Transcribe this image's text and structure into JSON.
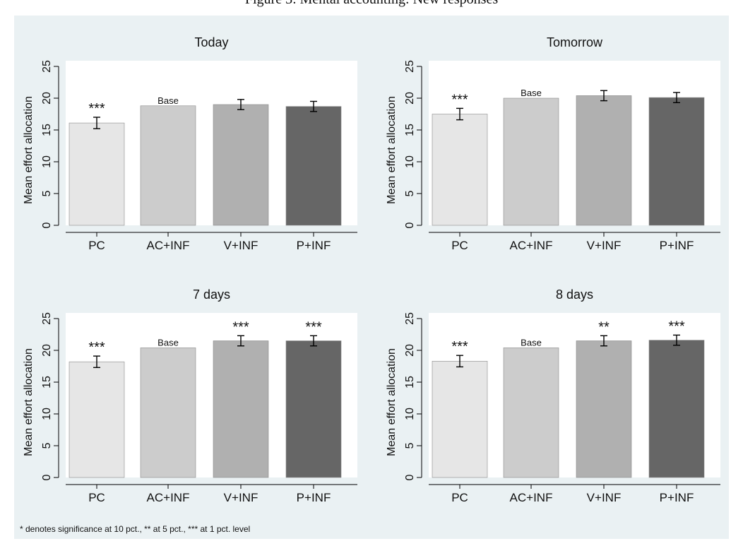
{
  "figure_title": "Figure 3: Mental accounting: New responses",
  "note": "* denotes significance at 10 pct., ** at 5 pct., *** at 1 pct. level",
  "colors": {
    "background": "#eaf1f3",
    "plot_area": "#ffffff",
    "bars": [
      "#e6e6e6",
      "#cccccc",
      "#b0b0b0",
      "#666666"
    ]
  },
  "chart_data": [
    {
      "type": "bar",
      "title": "Today",
      "ylabel": "Mean effort allocation",
      "xlabel": "",
      "ylim": [
        0,
        25
      ],
      "yticks": [
        0,
        5,
        10,
        15,
        20,
        25
      ],
      "grid": false,
      "categories": [
        "PC",
        "AC+INF",
        "V+INF",
        "P+INF"
      ],
      "values": [
        16.1,
        18.8,
        19.0,
        18.7
      ],
      "ci_low": [
        15.2,
        null,
        18.2,
        17.9
      ],
      "ci_high": [
        17.0,
        null,
        19.8,
        19.5
      ],
      "labels": [
        "***",
        "Base",
        "",
        ""
      ]
    },
    {
      "type": "bar",
      "title": "Tomorrow",
      "ylabel": "Mean effort allocation",
      "xlabel": "",
      "ylim": [
        0,
        25
      ],
      "yticks": [
        0,
        5,
        10,
        15,
        20,
        25
      ],
      "grid": false,
      "categories": [
        "PC",
        "AC+INF",
        "V+INF",
        "P+INF"
      ],
      "values": [
        17.5,
        20.0,
        20.4,
        20.1
      ],
      "ci_low": [
        16.6,
        null,
        19.6,
        19.3
      ],
      "ci_high": [
        18.4,
        null,
        21.2,
        20.9
      ],
      "labels": [
        "***",
        "Base",
        "",
        ""
      ]
    },
    {
      "type": "bar",
      "title": "7 days",
      "ylabel": "Mean effort allocation",
      "xlabel": "",
      "ylim": [
        0,
        25
      ],
      "yticks": [
        0,
        5,
        10,
        15,
        20,
        25
      ],
      "grid": false,
      "categories": [
        "PC",
        "AC+INF",
        "V+INF",
        "P+INF"
      ],
      "values": [
        18.2,
        20.4,
        21.5,
        21.5
      ],
      "ci_low": [
        17.3,
        null,
        20.7,
        20.7
      ],
      "ci_high": [
        19.1,
        null,
        22.3,
        22.3
      ],
      "labels": [
        "***",
        "Base",
        "***",
        "***"
      ]
    },
    {
      "type": "bar",
      "title": "8 days",
      "ylabel": "Mean effort allocation",
      "xlabel": "",
      "ylim": [
        0,
        25
      ],
      "yticks": [
        0,
        5,
        10,
        15,
        20,
        25
      ],
      "grid": false,
      "categories": [
        "PC",
        "AC+INF",
        "V+INF",
        "P+INF"
      ],
      "values": [
        18.3,
        20.4,
        21.5,
        21.6
      ],
      "ci_low": [
        17.4,
        null,
        20.7,
        20.8
      ],
      "ci_high": [
        19.2,
        null,
        22.3,
        22.4
      ],
      "labels": [
        "***",
        "Base",
        "**",
        "***"
      ]
    }
  ]
}
